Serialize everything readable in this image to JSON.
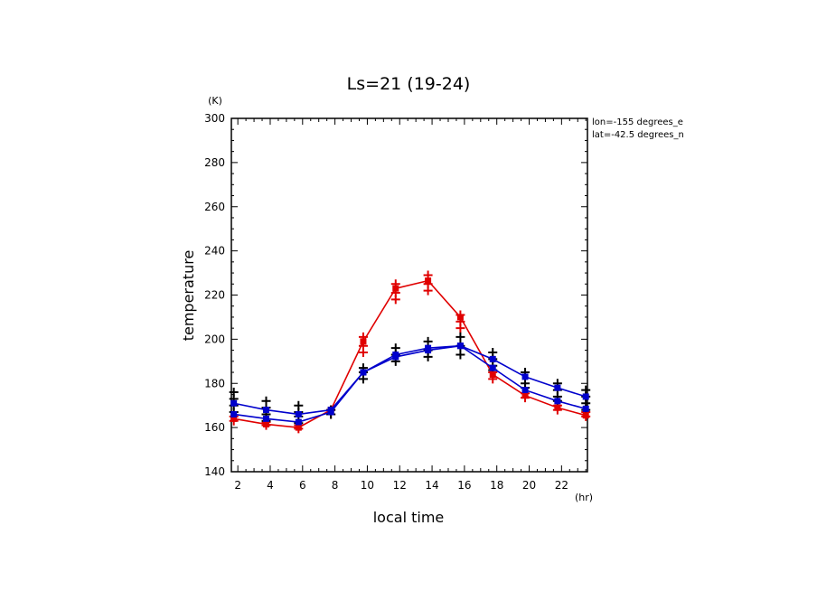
{
  "chart_data": {
    "type": "line",
    "title": "Ls=21 (19-24)",
    "xlabel": "local time",
    "ylabel": "temperature",
    "x_unit": "(hr)",
    "y_unit": "(K)",
    "xlim": [
      1.6,
      23.6
    ],
    "ylim": [
      140,
      300
    ],
    "x_ticks": [
      2,
      4,
      6,
      8,
      10,
      12,
      14,
      16,
      18,
      20,
      22
    ],
    "y_ticks": [
      140,
      160,
      180,
      200,
      220,
      240,
      260,
      280,
      300
    ],
    "annotations": [
      "lon=-155 degrees_e",
      "lat=-42.5 degrees_n"
    ],
    "x": [
      1.75,
      3.75,
      5.75,
      7.75,
      9.75,
      11.75,
      13.75,
      15.75,
      17.75,
      19.75,
      21.75,
      23.5
    ],
    "series": [
      {
        "color": "#e00000",
        "values": [
          164,
          161.5,
          160,
          168,
          199,
          223,
          226.5,
          210,
          184,
          174.5,
          169,
          165.5
        ]
      },
      {
        "color": "#0000cc",
        "values": [
          171,
          168,
          166,
          168,
          185,
          193,
          196,
          197,
          191,
          183,
          178,
          174
        ]
      },
      {
        "color": "#0000cc",
        "values": [
          166,
          164,
          162.5,
          167,
          185,
          192,
          195,
          197,
          187,
          177,
          172,
          168.5
        ]
      }
    ],
    "scatter": [
      {
        "color": "#e00000",
        "points": [
          [
            1.75,
            163
          ],
          [
            1.75,
            165
          ],
          [
            3.75,
            161
          ],
          [
            3.75,
            162.5
          ],
          [
            5.75,
            159.5
          ],
          [
            5.75,
            161
          ],
          [
            7.75,
            166
          ],
          [
            7.75,
            168
          ],
          [
            9.75,
            194
          ],
          [
            9.75,
            197
          ],
          [
            9.75,
            201
          ],
          [
            11.75,
            218
          ],
          [
            11.75,
            221
          ],
          [
            11.75,
            225
          ],
          [
            13.75,
            222
          ],
          [
            13.75,
            225
          ],
          [
            13.75,
            229
          ],
          [
            15.75,
            205
          ],
          [
            15.75,
            208
          ],
          [
            15.75,
            211
          ],
          [
            17.75,
            182
          ],
          [
            17.75,
            185
          ],
          [
            19.75,
            173.5
          ],
          [
            19.75,
            175.5
          ],
          [
            21.75,
            168
          ],
          [
            21.75,
            170
          ],
          [
            23.5,
            165
          ],
          [
            23.5,
            167
          ]
        ]
      },
      {
        "color": "#000000",
        "points": [
          [
            1.75,
            167
          ],
          [
            1.75,
            170
          ],
          [
            1.75,
            173
          ],
          [
            1.75,
            176
          ],
          [
            3.75,
            163
          ],
          [
            3.75,
            166
          ],
          [
            3.75,
            169
          ],
          [
            3.75,
            172
          ],
          [
            5.75,
            162
          ],
          [
            5.75,
            165
          ],
          [
            5.75,
            167
          ],
          [
            5.75,
            170
          ],
          [
            7.75,
            166
          ],
          [
            7.75,
            168
          ],
          [
            9.75,
            182
          ],
          [
            9.75,
            185
          ],
          [
            9.75,
            187
          ],
          [
            11.75,
            190
          ],
          [
            11.75,
            193
          ],
          [
            11.75,
            196
          ],
          [
            13.75,
            192
          ],
          [
            13.75,
            195
          ],
          [
            13.75,
            199
          ],
          [
            15.75,
            193
          ],
          [
            15.75,
            197
          ],
          [
            15.75,
            201
          ],
          [
            17.75,
            186
          ],
          [
            17.75,
            188
          ],
          [
            17.75,
            191
          ],
          [
            17.75,
            194
          ],
          [
            19.75,
            178
          ],
          [
            19.75,
            180
          ],
          [
            19.75,
            185
          ],
          [
            21.75,
            172
          ],
          [
            21.75,
            174
          ],
          [
            21.75,
            177
          ],
          [
            21.75,
            180
          ],
          [
            23.5,
            168
          ],
          [
            23.5,
            171
          ],
          [
            23.5,
            174
          ],
          [
            23.5,
            177
          ]
        ]
      }
    ]
  }
}
